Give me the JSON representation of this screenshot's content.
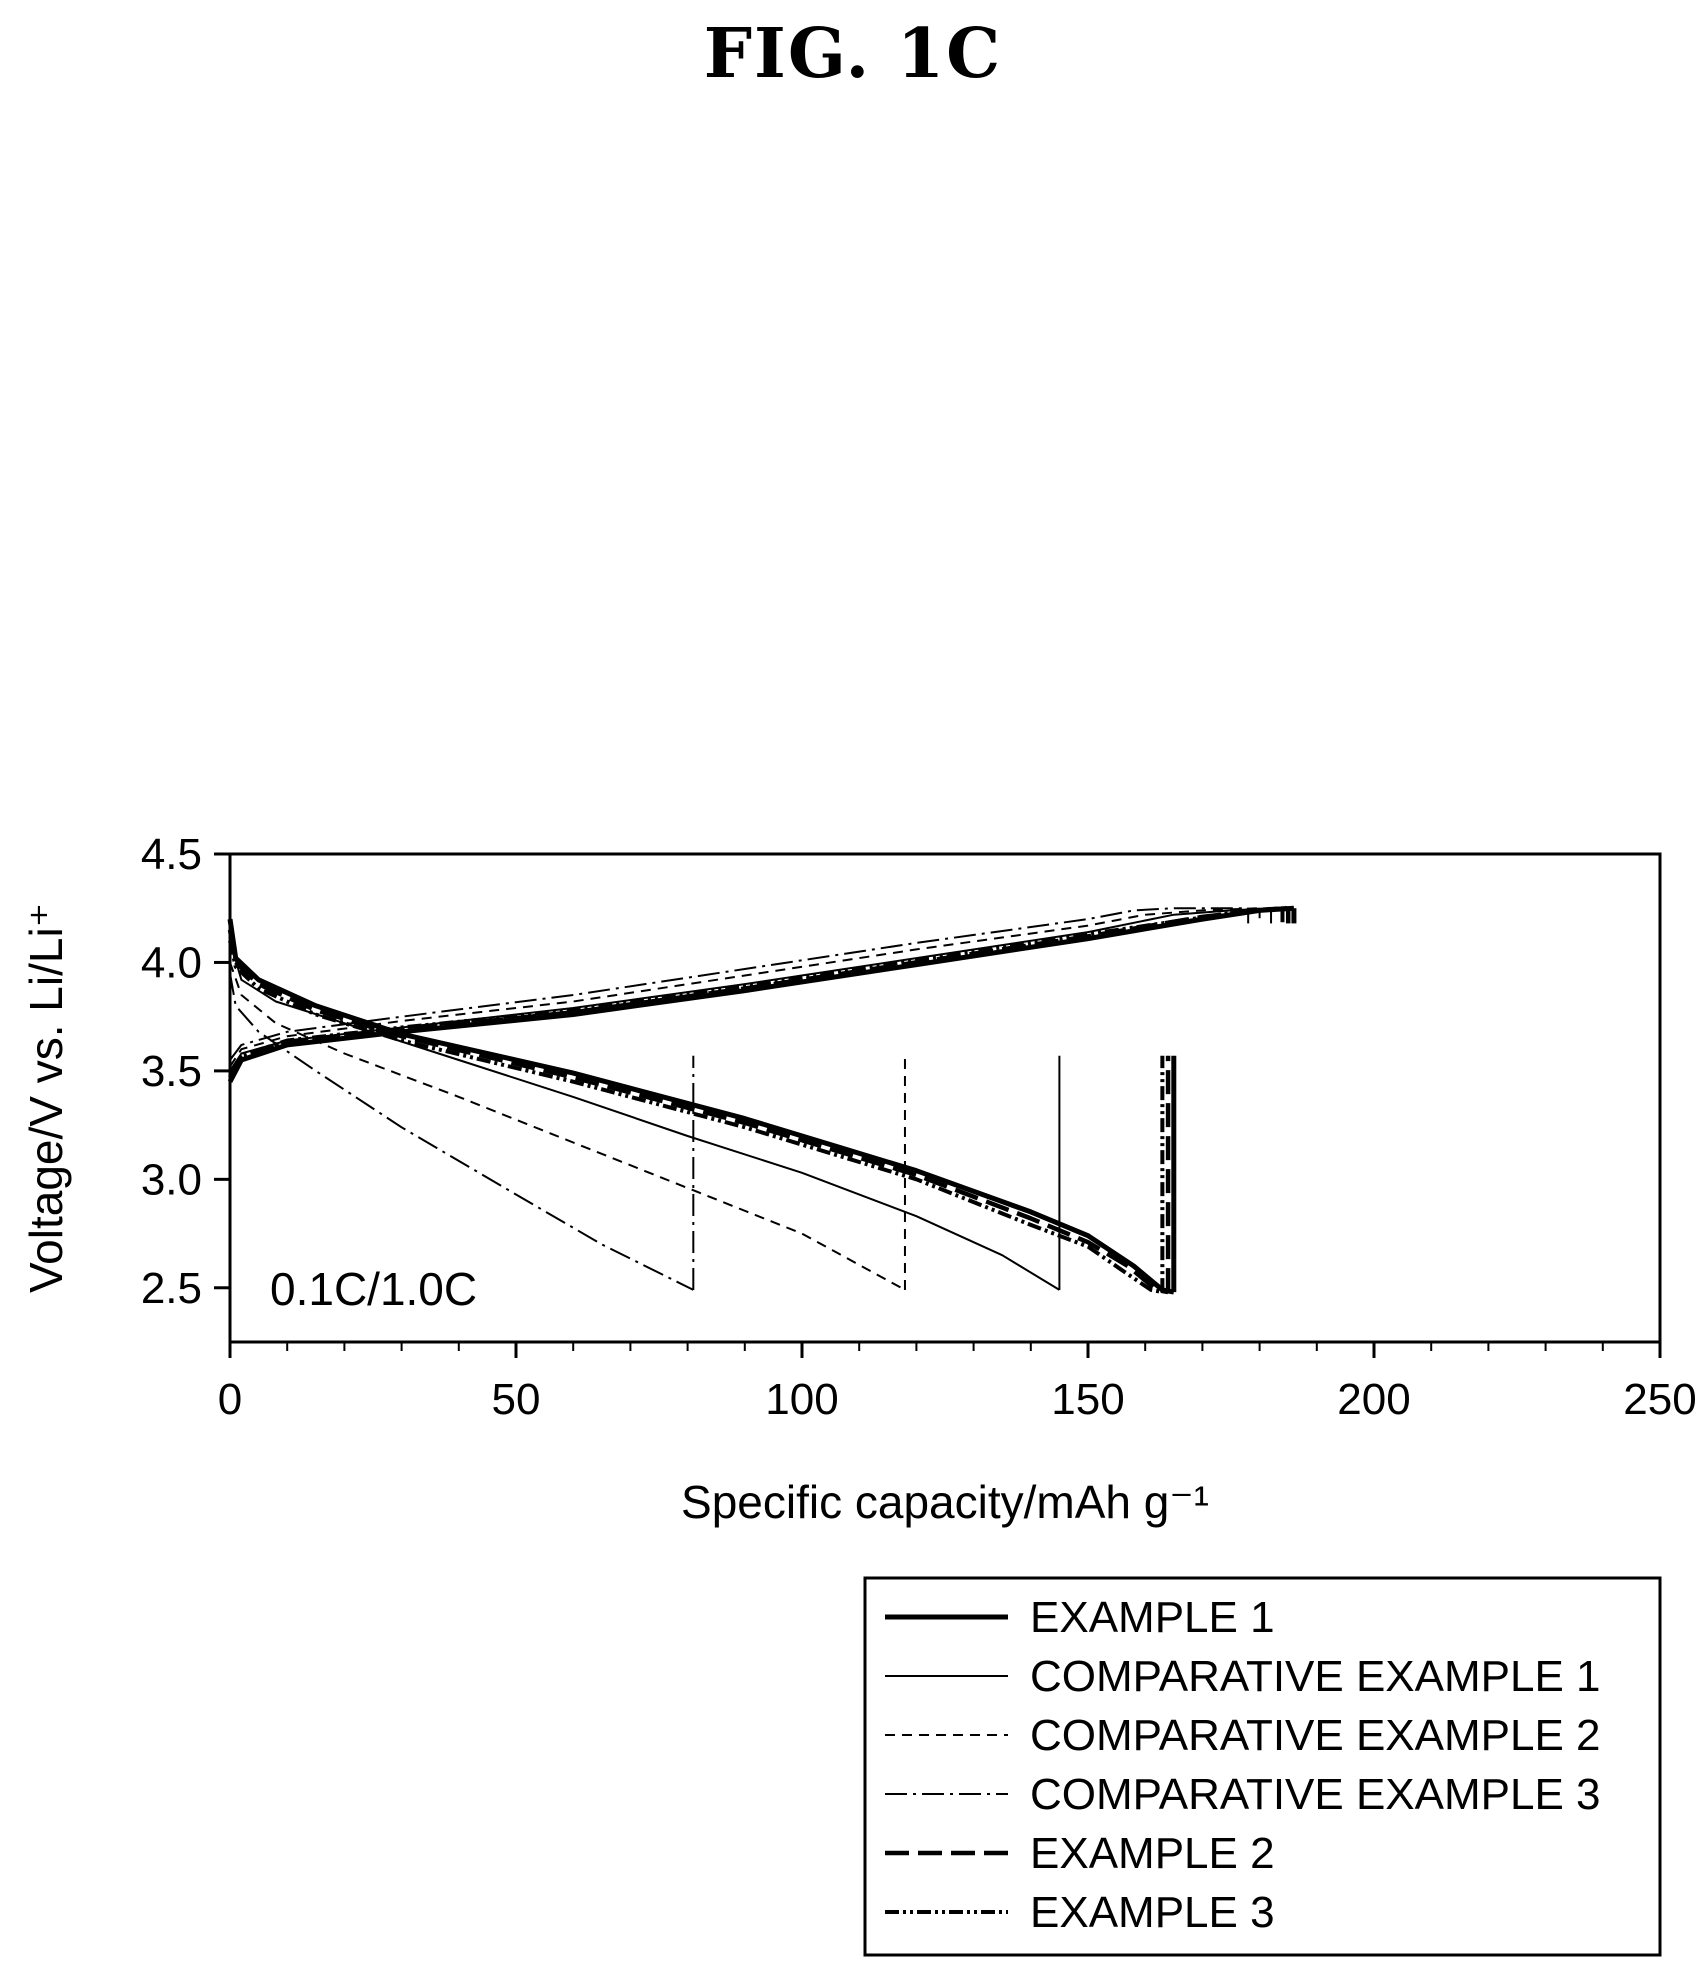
{
  "figure": {
    "title": "FIG. 1C"
  },
  "chart_data": {
    "type": "line",
    "annotation": "0.1C/1.0C",
    "xlabel": "Specific capacity/mAh g⁻¹",
    "ylabel": "Voltage/V vs. Li/Li⁺",
    "xlim": [
      0,
      250
    ],
    "ylim": [
      2.25,
      4.5
    ],
    "xticks": [
      0,
      50,
      100,
      150,
      200,
      250
    ],
    "yticks": [
      2.5,
      3.0,
      3.5,
      4.0,
      4.5
    ],
    "grid": false,
    "legend_position": "below-right",
    "series": [
      {
        "name": "EXAMPLE 1",
        "style": "thick-solid",
        "charge": [
          [
            0,
            3.45
          ],
          [
            2,
            3.55
          ],
          [
            10,
            3.62
          ],
          [
            30,
            3.68
          ],
          [
            60,
            3.76
          ],
          [
            90,
            3.87
          ],
          [
            120,
            3.99
          ],
          [
            150,
            4.11
          ],
          [
            170,
            4.2
          ],
          [
            180,
            4.24
          ],
          [
            186,
            4.25
          ]
        ],
        "discharge": [
          [
            0,
            4.2
          ],
          [
            1,
            4.02
          ],
          [
            5,
            3.92
          ],
          [
            15,
            3.8
          ],
          [
            30,
            3.67
          ],
          [
            60,
            3.49
          ],
          [
            90,
            3.28
          ],
          [
            120,
            3.04
          ],
          [
            140,
            2.85
          ],
          [
            150,
            2.74
          ],
          [
            158,
            2.6
          ],
          [
            163,
            2.49
          ],
          [
            165,
            2.48
          ]
        ]
      },
      {
        "name": "COMPARATIVE EXAMPLE 1",
        "style": "thin-solid",
        "charge": [
          [
            0,
            3.5
          ],
          [
            2,
            3.58
          ],
          [
            10,
            3.64
          ],
          [
            30,
            3.7
          ],
          [
            60,
            3.79
          ],
          [
            90,
            3.9
          ],
          [
            120,
            4.02
          ],
          [
            150,
            4.14
          ],
          [
            165,
            4.22
          ],
          [
            175,
            4.24
          ],
          [
            182,
            4.25
          ]
        ],
        "discharge": [
          [
            0,
            4.1
          ],
          [
            2,
            3.92
          ],
          [
            8,
            3.82
          ],
          [
            20,
            3.72
          ],
          [
            40,
            3.55
          ],
          [
            60,
            3.38
          ],
          [
            80,
            3.2
          ],
          [
            100,
            3.03
          ],
          [
            120,
            2.83
          ],
          [
            135,
            2.65
          ],
          [
            145,
            2.49
          ]
        ]
      },
      {
        "name": "COMPARATIVE EXAMPLE 2",
        "style": "dashed",
        "charge": [
          [
            0,
            3.52
          ],
          [
            2,
            3.6
          ],
          [
            10,
            3.66
          ],
          [
            30,
            3.73
          ],
          [
            60,
            3.82
          ],
          [
            90,
            3.94
          ],
          [
            120,
            4.06
          ],
          [
            150,
            4.17
          ],
          [
            160,
            4.22
          ],
          [
            170,
            4.24
          ],
          [
            180,
            4.25
          ]
        ],
        "discharge": [
          [
            0,
            4.0
          ],
          [
            2,
            3.85
          ],
          [
            8,
            3.72
          ],
          [
            20,
            3.58
          ],
          [
            40,
            3.38
          ],
          [
            60,
            3.17
          ],
          [
            80,
            2.96
          ],
          [
            100,
            2.75
          ],
          [
            118,
            2.49
          ]
        ]
      },
      {
        "name": "COMPARATIVE EXAMPLE 3",
        "style": "dash-dot",
        "charge": [
          [
            0,
            3.55
          ],
          [
            2,
            3.62
          ],
          [
            10,
            3.68
          ],
          [
            30,
            3.75
          ],
          [
            60,
            3.85
          ],
          [
            90,
            3.97
          ],
          [
            120,
            4.09
          ],
          [
            150,
            4.2
          ],
          [
            158,
            4.24
          ],
          [
            165,
            4.25
          ],
          [
            178,
            4.25
          ]
        ],
        "discharge": [
          [
            0,
            3.95
          ],
          [
            1,
            3.8
          ],
          [
            5,
            3.68
          ],
          [
            15,
            3.5
          ],
          [
            30,
            3.24
          ],
          [
            50,
            2.93
          ],
          [
            65,
            2.7
          ],
          [
            81,
            2.49
          ]
        ]
      },
      {
        "name": "EXAMPLE 2",
        "style": "long-dash",
        "charge": [
          [
            0,
            3.47
          ],
          [
            2,
            3.56
          ],
          [
            10,
            3.63
          ],
          [
            30,
            3.69
          ],
          [
            60,
            3.77
          ],
          [
            90,
            3.88
          ],
          [
            120,
            4.0
          ],
          [
            150,
            4.12
          ],
          [
            170,
            4.21
          ],
          [
            180,
            4.24
          ],
          [
            185,
            4.25
          ]
        ],
        "discharge": [
          [
            0,
            4.15
          ],
          [
            1,
            4.0
          ],
          [
            5,
            3.9
          ],
          [
            15,
            3.78
          ],
          [
            30,
            3.66
          ],
          [
            60,
            3.47
          ],
          [
            90,
            3.26
          ],
          [
            120,
            3.02
          ],
          [
            140,
            2.82
          ],
          [
            150,
            2.71
          ],
          [
            157,
            2.6
          ],
          [
            162,
            2.49
          ],
          [
            164,
            2.48
          ]
        ]
      },
      {
        "name": "EXAMPLE 3",
        "style": "dash-dot-dot",
        "charge": [
          [
            0,
            3.48
          ],
          [
            2,
            3.57
          ],
          [
            10,
            3.64
          ],
          [
            30,
            3.7
          ],
          [
            60,
            3.78
          ],
          [
            90,
            3.89
          ],
          [
            120,
            4.01
          ],
          [
            150,
            4.13
          ],
          [
            168,
            4.2
          ],
          [
            178,
            4.24
          ],
          [
            184,
            4.25
          ]
        ],
        "discharge": [
          [
            0,
            4.1
          ],
          [
            1,
            3.98
          ],
          [
            5,
            3.88
          ],
          [
            15,
            3.76
          ],
          [
            30,
            3.64
          ],
          [
            60,
            3.45
          ],
          [
            90,
            3.24
          ],
          [
            120,
            3.0
          ],
          [
            140,
            2.79
          ],
          [
            150,
            2.69
          ],
          [
            156,
            2.58
          ],
          [
            161,
            2.49
          ],
          [
            163,
            2.48
          ]
        ]
      }
    ]
  }
}
